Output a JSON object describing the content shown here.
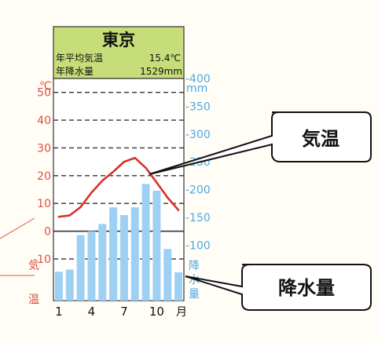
{
  "colors": {
    "page_bg": "#fffdf6",
    "header_bg": "#c6dd7a",
    "temp_axis": "#e0503f",
    "precip_axis": "#4aa8e8",
    "temp_line": "#d8302a",
    "bar": "#9ed0f4",
    "dash": "#333333",
    "callout_border": "#111111"
  },
  "chart_data": {
    "type": "bar+line",
    "title": "東京",
    "stats": [
      {
        "label": "年平均気温",
        "value": "15.4℃"
      },
      {
        "label": "年降水量",
        "value": "1529mm"
      }
    ],
    "x": {
      "months": [
        1,
        2,
        3,
        4,
        5,
        6,
        7,
        8,
        9,
        10,
        11,
        12
      ],
      "tick_labels": [
        "1",
        "4",
        "7",
        "10"
      ],
      "unit": "月"
    },
    "y_left": {
      "unit": "℃",
      "range": [
        -25,
        55
      ],
      "ticks": [
        "50",
        "40",
        "30",
        "20",
        "10",
        "0",
        "-10"
      ],
      "side_label": [
        "気",
        "温"
      ]
    },
    "y_right": {
      "unit": "mm",
      "range": [
        0,
        400
      ],
      "ticks": [
        "400",
        "350",
        "300",
        "250",
        "200",
        "150",
        "100"
      ],
      "side_label": [
        "降",
        "水",
        "量"
      ]
    },
    "series": [
      {
        "kind": "line",
        "axis": "left",
        "values": [
          5.2,
          5.7,
          8.7,
          13.9,
          18.2,
          21.4,
          25.0,
          26.4,
          22.8,
          17.5,
          12.1,
          7.6
        ]
      },
      {
        "kind": "bar",
        "axis": "right",
        "values": [
          52,
          56,
          118,
          125,
          138,
          168,
          154,
          168,
          210,
          198,
          93,
          51
        ]
      }
    ],
    "grid": "dashed horizontal",
    "annotations": [
      "気温",
      "降水量"
    ]
  }
}
